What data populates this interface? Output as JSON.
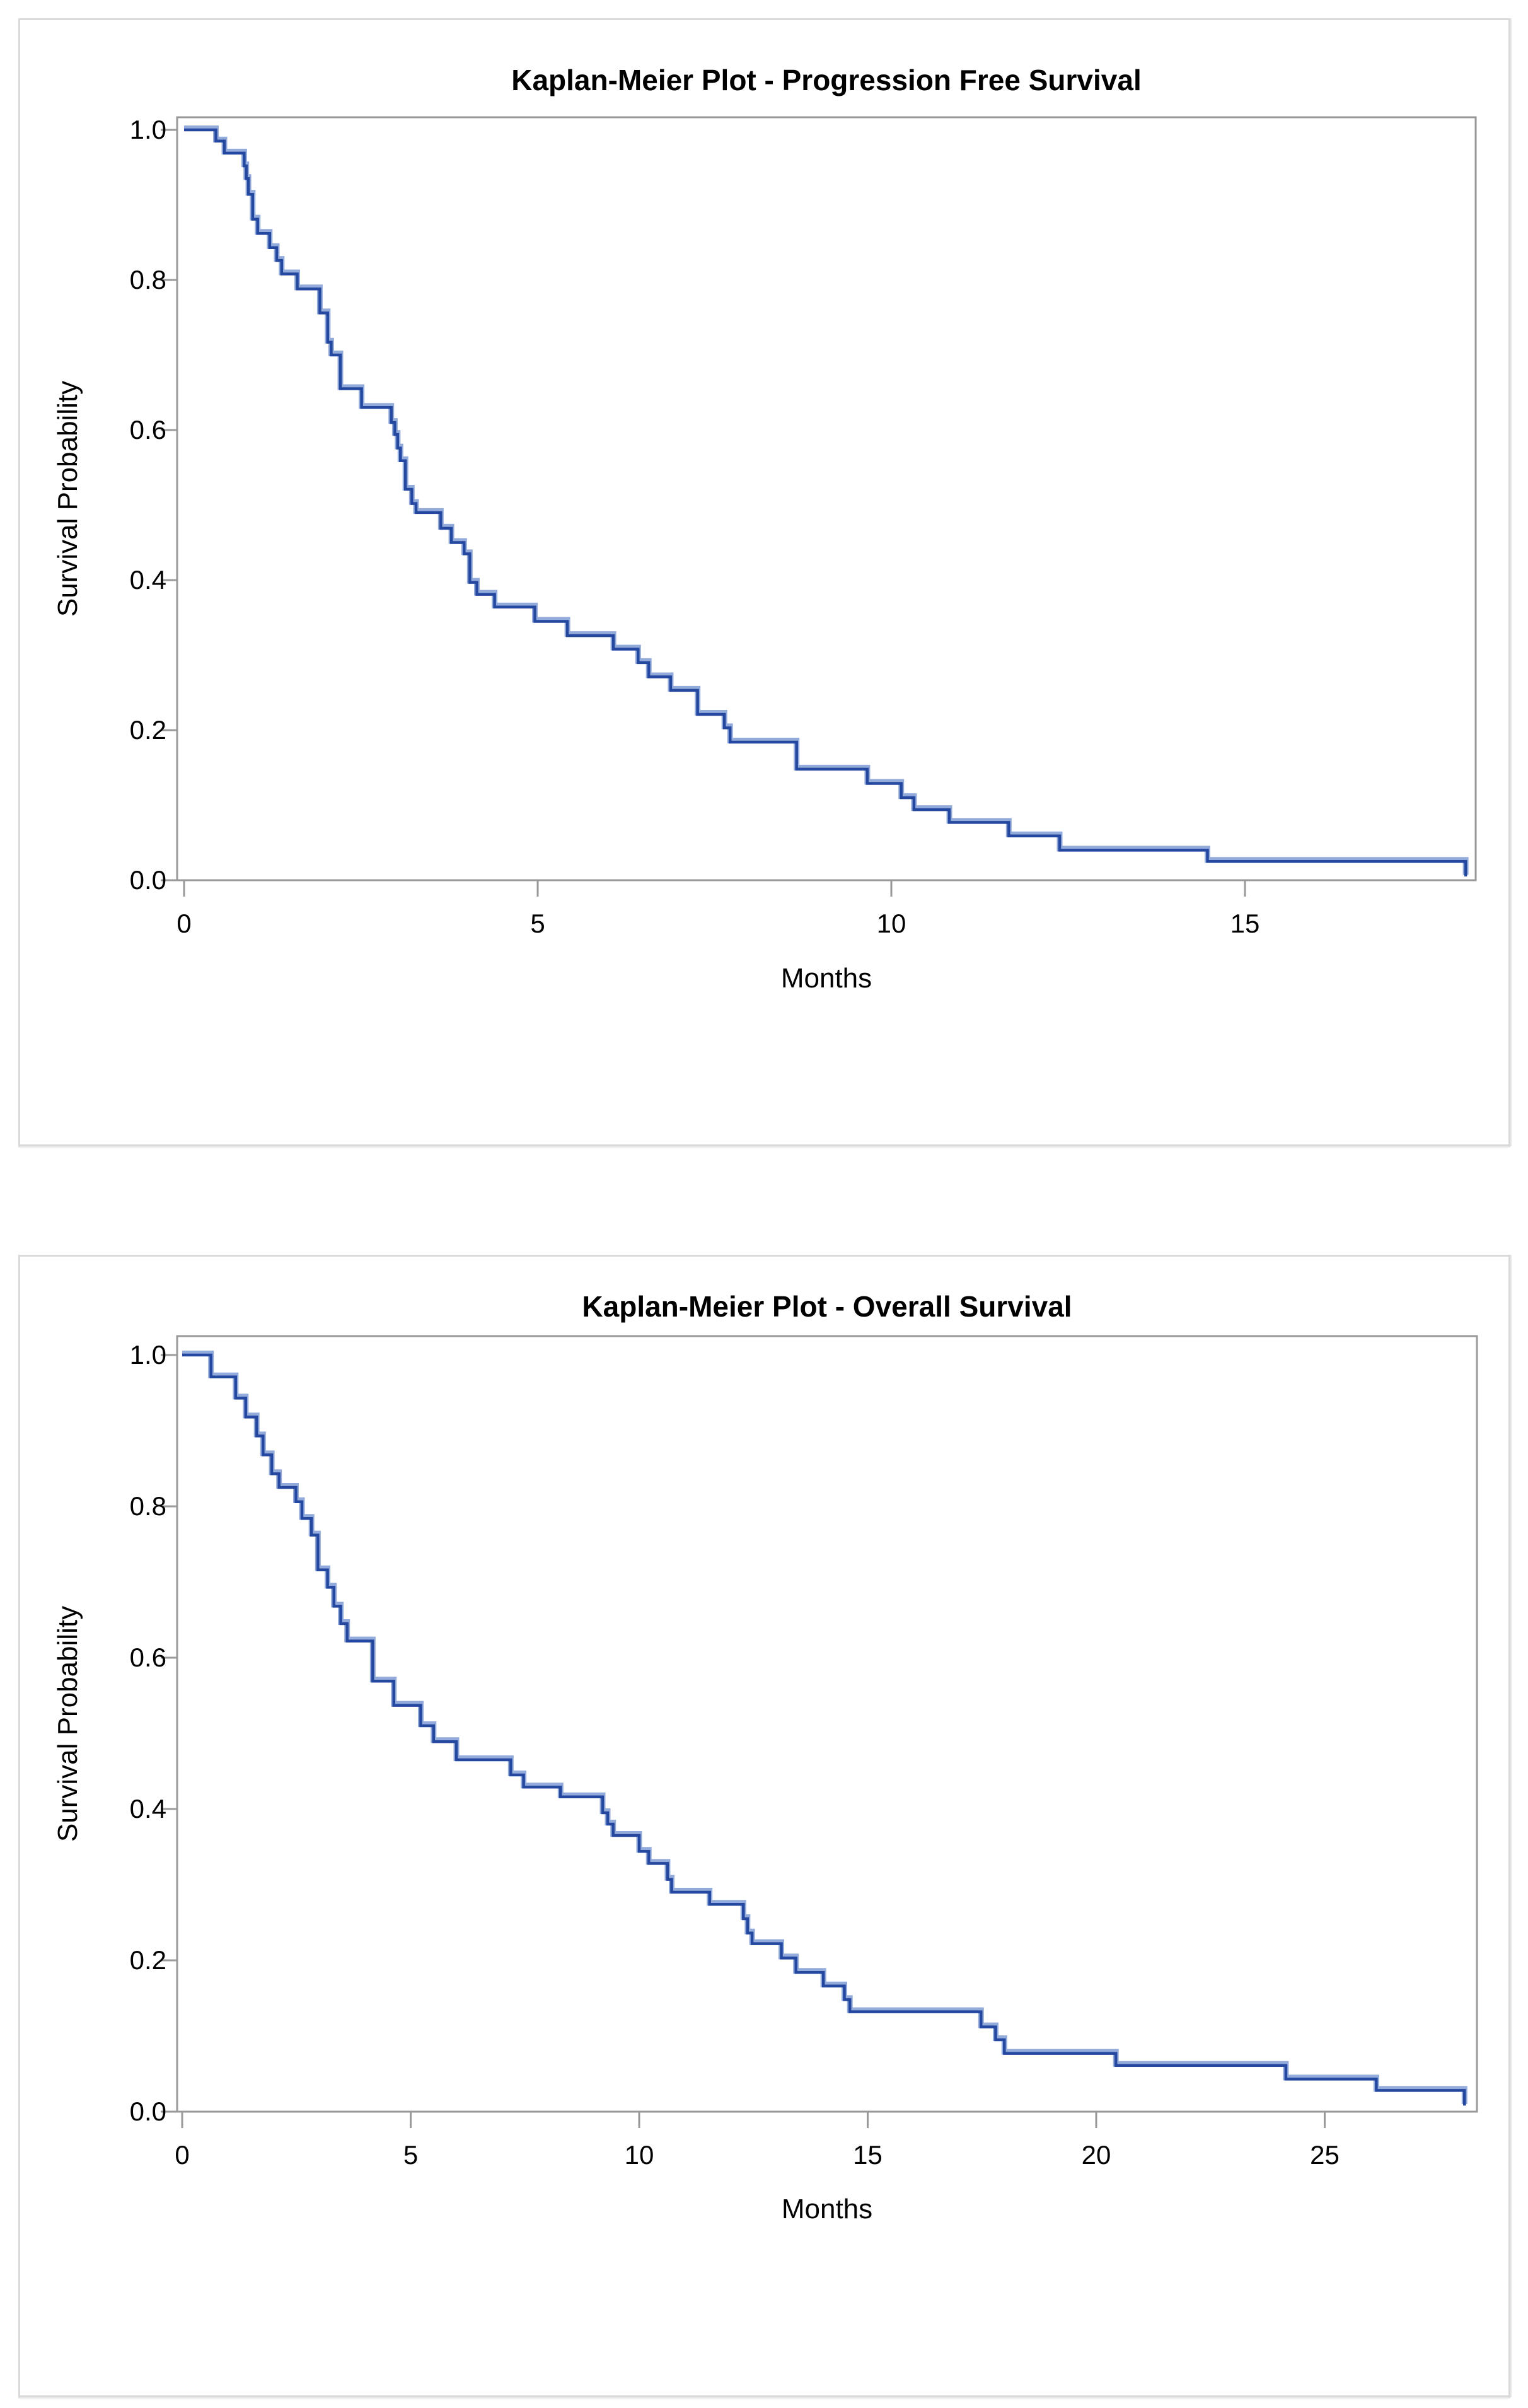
{
  "page": {
    "background": "#ffffff",
    "panel_border_color": "#d9d9d9",
    "frame_color": "#999999",
    "text_color": "#000000",
    "curve_color": "#24479f",
    "curve_halo_color": "#93abdb"
  },
  "chart_data": [
    {
      "type": "line",
      "subtype": "step",
      "title": "Kaplan-Meier Plot - Progression Free Survival",
      "xlabel": "Months",
      "ylabel": "Survival Probability",
      "x_ticks": [
        0,
        5,
        10,
        15
      ],
      "y_ticks": [
        1.0,
        0.8,
        0.6,
        0.4,
        0.2,
        0.0
      ],
      "xlim": [
        0,
        18.3
      ],
      "ylim": [
        0,
        1
      ],
      "grid": false,
      "legend": null,
      "series": [
        {
          "name": "Progression Free Survival",
          "color": "#24479f",
          "points": [
            [
              0,
              1.0
            ],
            [
              0.45,
              0.985
            ],
            [
              0.57,
              0.969
            ],
            [
              0.85,
              0.952
            ],
            [
              0.88,
              0.935
            ],
            [
              0.91,
              0.914
            ],
            [
              0.97,
              0.881
            ],
            [
              1.04,
              0.862
            ],
            [
              1.21,
              0.843
            ],
            [
              1.31,
              0.826
            ],
            [
              1.38,
              0.808
            ],
            [
              1.6,
              0.788
            ],
            [
              1.92,
              0.756
            ],
            [
              2.03,
              0.717
            ],
            [
              2.08,
              0.7
            ],
            [
              2.21,
              0.655
            ],
            [
              2.51,
              0.63
            ],
            [
              2.93,
              0.61
            ],
            [
              2.98,
              0.594
            ],
            [
              3.02,
              0.576
            ],
            [
              3.06,
              0.559
            ],
            [
              3.13,
              0.521
            ],
            [
              3.22,
              0.502
            ],
            [
              3.28,
              0.49
            ],
            [
              3.63,
              0.469
            ],
            [
              3.78,
              0.45
            ],
            [
              3.96,
              0.435
            ],
            [
              4.04,
              0.397
            ],
            [
              4.14,
              0.381
            ],
            [
              4.39,
              0.364
            ],
            [
              4.96,
              0.345
            ],
            [
              5.42,
              0.326
            ],
            [
              6.07,
              0.308
            ],
            [
              6.42,
              0.29
            ],
            [
              6.57,
              0.271
            ],
            [
              6.88,
              0.253
            ],
            [
              7.26,
              0.221
            ],
            [
              7.64,
              0.203
            ],
            [
              7.72,
              0.184
            ],
            [
              8.66,
              0.148
            ],
            [
              9.66,
              0.129
            ],
            [
              10.14,
              0.11
            ],
            [
              10.32,
              0.094
            ],
            [
              10.82,
              0.077
            ],
            [
              11.66,
              0.059
            ],
            [
              12.38,
              0.04
            ],
            [
              14.47,
              0.025
            ],
            [
              18.12,
              0.005
            ]
          ]
        }
      ]
    },
    {
      "type": "line",
      "subtype": "step",
      "title": "Kaplan-Meier Plot - Overall Survival",
      "xlabel": "Months",
      "ylabel": "Survival Probability",
      "x_ticks": [
        0,
        5,
        10,
        15,
        20,
        25
      ],
      "y_ticks": [
        1.0,
        0.8,
        0.6,
        0.4,
        0.2,
        0.0
      ],
      "xlim": [
        0,
        28.5
      ],
      "ylim": [
        0,
        1
      ],
      "grid": false,
      "legend": null,
      "series": [
        {
          "name": "Overall Survival",
          "color": "#24479f",
          "points": [
            [
              0,
              1.0
            ],
            [
              0.63,
              0.971
            ],
            [
              1.17,
              0.943
            ],
            [
              1.39,
              0.918
            ],
            [
              1.63,
              0.893
            ],
            [
              1.77,
              0.868
            ],
            [
              1.96,
              0.843
            ],
            [
              2.12,
              0.825
            ],
            [
              2.49,
              0.806
            ],
            [
              2.62,
              0.784
            ],
            [
              2.83,
              0.762
            ],
            [
              2.97,
              0.716
            ],
            [
              3.18,
              0.693
            ],
            [
              3.32,
              0.668
            ],
            [
              3.47,
              0.645
            ],
            [
              3.61,
              0.622
            ],
            [
              4.17,
              0.569
            ],
            [
              4.63,
              0.537
            ],
            [
              5.22,
              0.51
            ],
            [
              5.5,
              0.489
            ],
            [
              6.0,
              0.465
            ],
            [
              7.19,
              0.445
            ],
            [
              7.47,
              0.429
            ],
            [
              8.28,
              0.416
            ],
            [
              9.2,
              0.395
            ],
            [
              9.31,
              0.38
            ],
            [
              9.43,
              0.365
            ],
            [
              10.0,
              0.344
            ],
            [
              10.21,
              0.328
            ],
            [
              10.62,
              0.307
            ],
            [
              10.71,
              0.29
            ],
            [
              11.54,
              0.274
            ],
            [
              12.28,
              0.255
            ],
            [
              12.37,
              0.236
            ],
            [
              12.47,
              0.222
            ],
            [
              13.11,
              0.203
            ],
            [
              13.43,
              0.184
            ],
            [
              14.03,
              0.166
            ],
            [
              14.49,
              0.148
            ],
            [
              14.61,
              0.132
            ],
            [
              17.48,
              0.112
            ],
            [
              17.8,
              0.095
            ],
            [
              17.99,
              0.077
            ],
            [
              20.43,
              0.061
            ],
            [
              24.15,
              0.043
            ],
            [
              26.13,
              0.028
            ],
            [
              28.06,
              0.008
            ]
          ]
        }
      ]
    }
  ]
}
